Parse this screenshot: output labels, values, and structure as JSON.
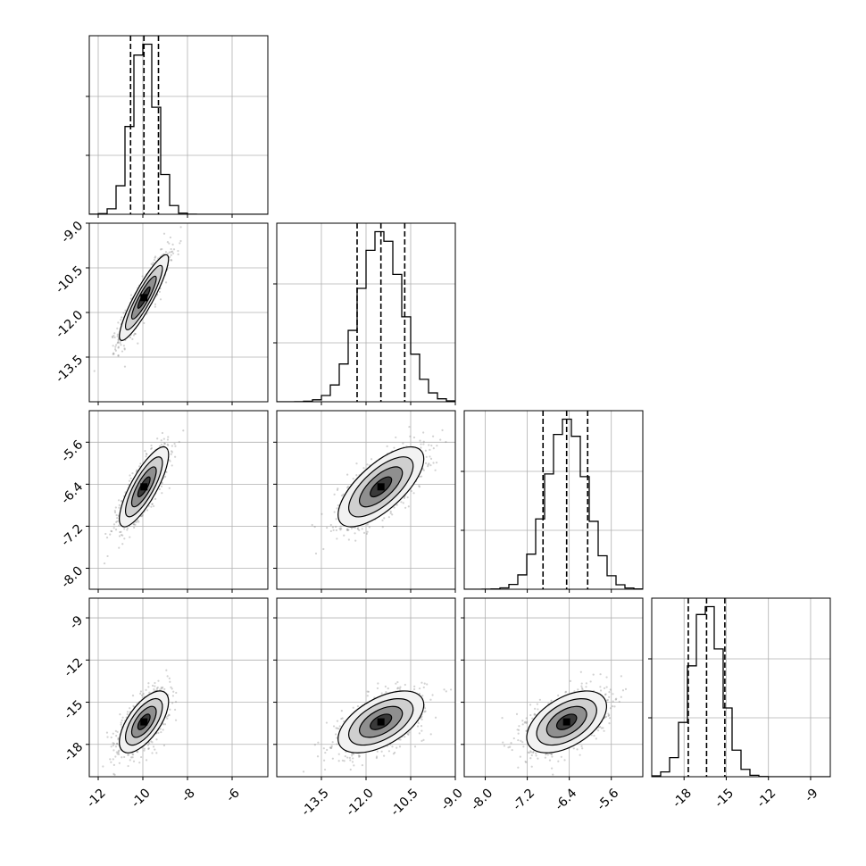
{
  "chart_data": {
    "type": "corner",
    "parameters": 4,
    "axis_labels": [
      "",
      "",
      "",
      ""
    ],
    "ranges": [
      [
        -12.4,
        -4.4
      ],
      [
        -15.0,
        -9.0
      ],
      [
        -8.4,
        -5.0
      ],
      [
        -20.3,
        -7.6
      ]
    ],
    "x_ticks": [
      [
        "-12",
        "-10",
        "-8",
        "-6"
      ],
      [
        "-13.5",
        "-12.0",
        "-10.5",
        "-9.0"
      ],
      [
        "-8.0",
        "-7.2",
        "-6.4",
        "-5.6"
      ],
      [
        "-18",
        "-15",
        "-12",
        "-9"
      ]
    ],
    "y_ticks": [
      [],
      [
        "-9.0",
        "-10.5",
        "-12.0",
        "-13.5"
      ],
      [
        "-5.6",
        "-6.4",
        "-7.2",
        "-8.0"
      ],
      [
        "-9",
        "-12",
        "-15",
        "-18"
      ]
    ],
    "quantiles": [
      [
        -10.55,
        -9.95,
        -9.3
      ],
      [
        -12.3,
        -11.5,
        -10.7
      ],
      [
        -6.9,
        -6.45,
        -6.05
      ],
      [
        -17.7,
        -16.4,
        -15.1
      ]
    ],
    "means": [
      -9.95,
      -11.5,
      -6.45,
      -16.4
    ],
    "sigmas": [
      0.55,
      0.72,
      0.38,
      1.1
    ],
    "correlations": [
      [
        0,
        1,
        0.9
      ],
      [
        0,
        2,
        0.8
      ],
      [
        0,
        3,
        0.65
      ],
      [
        1,
        2,
        0.7
      ],
      [
        1,
        3,
        0.55
      ],
      [
        2,
        3,
        0.5
      ]
    ],
    "grid": true,
    "histogram_type": "step",
    "colors": {
      "line": "#000000",
      "grid": "#b0b0b0",
      "points": "#7f7f7f"
    }
  }
}
